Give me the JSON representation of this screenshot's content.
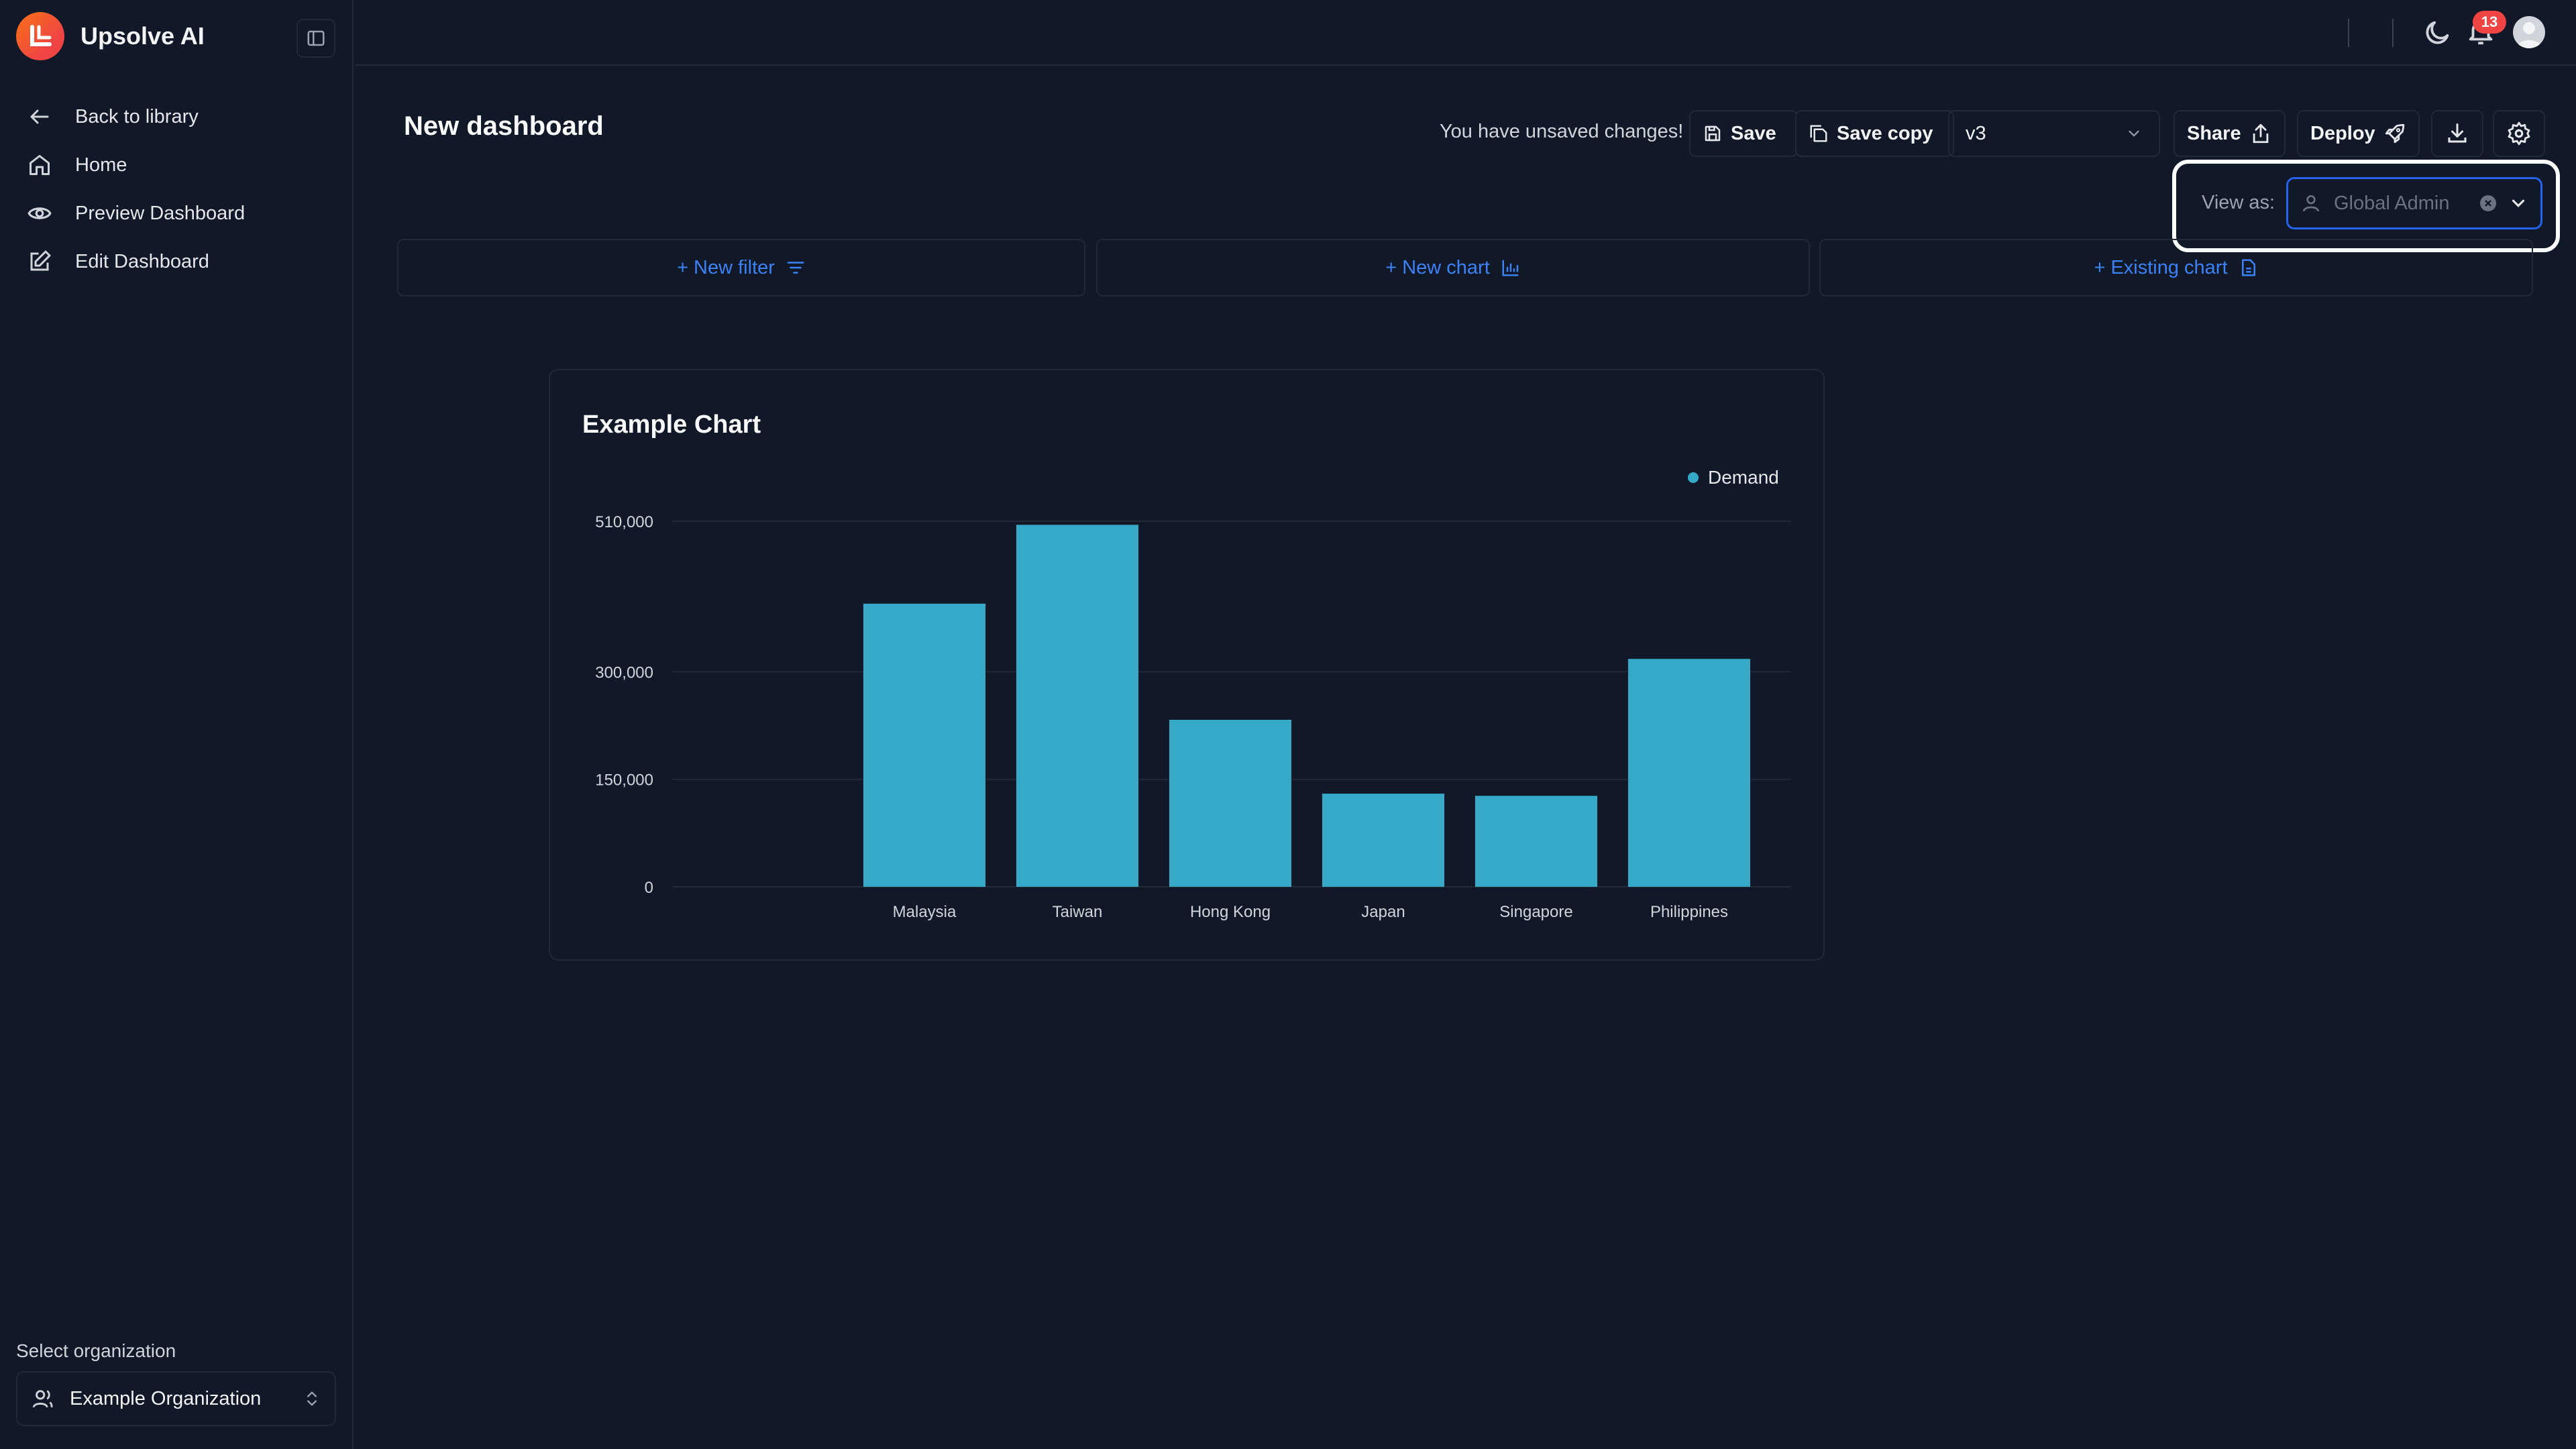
{
  "app": {
    "name": "Upsolve AI"
  },
  "sidebar": {
    "items": [
      {
        "label": "Back to library",
        "icon": "arrow-left-icon"
      },
      {
        "label": "Home",
        "icon": "home-icon"
      },
      {
        "label": "Preview Dashboard",
        "icon": "eye-icon"
      },
      {
        "label": "Edit Dashboard",
        "icon": "edit-icon"
      }
    ],
    "org_label": "Select organization",
    "org_value": "Example Organization"
  },
  "topbar": {
    "notification_count": "13"
  },
  "header": {
    "title": "New dashboard",
    "unsaved_text": "You have unsaved changes!",
    "save_label": "Save",
    "save_copy_label": "Save copy",
    "version": "v3",
    "share_label": "Share",
    "deploy_label": "Deploy"
  },
  "view_as": {
    "label": "View as:",
    "value": "Global Admin"
  },
  "add_bar": {
    "new_filter": "+ New filter",
    "new_chart": "+ New chart",
    "existing_chart": "+ Existing chart"
  },
  "colors": {
    "accent": "#3b82f6",
    "bar": "#36a9c9",
    "background": "#111827"
  },
  "chart_data": {
    "type": "bar",
    "title": "Example Chart",
    "categories": [
      "Malaysia",
      "Taiwan",
      "Hong Kong",
      "Japan",
      "Singapore",
      "Philippines"
    ],
    "series": [
      {
        "name": "Demand",
        "values": [
          395000,
          505000,
          233000,
          130000,
          127000,
          318000
        ]
      }
    ],
    "y_ticks": [
      {
        "value": 0,
        "label": "0"
      },
      {
        "value": 150000,
        "label": "150,000"
      },
      {
        "value": 300000,
        "label": "300,000"
      },
      {
        "value": 510000,
        "label": "510,000"
      }
    ],
    "ylim": [
      0,
      510000
    ],
    "legend": "top-right",
    "grid": true
  }
}
